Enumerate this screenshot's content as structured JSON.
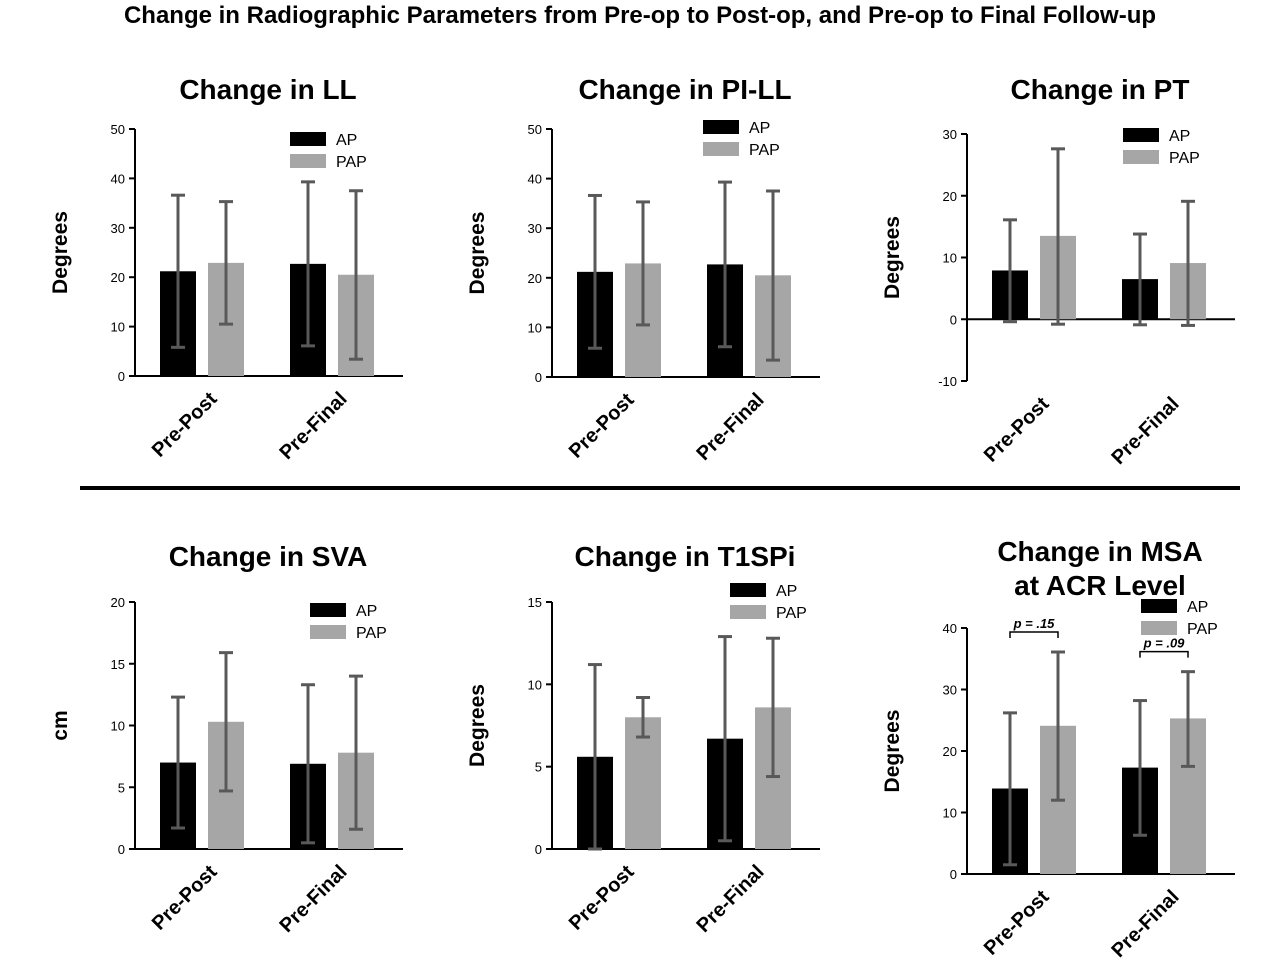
{
  "title": "Change in Radiographic Parameters from Pre-op to Post-op, and Pre-op to Final Follow-up",
  "colors": {
    "AP": "#000000",
    "PAP": "#a6a6a6",
    "errorbar": "#595959",
    "axis": "#000000"
  },
  "chart_data": [
    {
      "type": "bar",
      "title": "Change in LL",
      "ylabel": "Degrees",
      "ylim": [
        0,
        50
      ],
      "yticks": [
        0,
        10,
        20,
        30,
        40,
        50
      ],
      "categories": [
        "Pre-Post",
        "Pre-Final"
      ],
      "series": [
        {
          "name": "AP",
          "values": [
            21.2,
            22.7
          ],
          "err_low": [
            5.8,
            6.1
          ],
          "err_high": [
            36.6,
            39.3
          ]
        },
        {
          "name": "PAP",
          "values": [
            22.9,
            20.5
          ],
          "err_low": [
            10.5,
            3.4
          ],
          "err_high": [
            35.3,
            37.5
          ]
        }
      ],
      "legend": "top-right"
    },
    {
      "type": "bar",
      "title": "Change in PI-LL",
      "ylabel": "Degrees",
      "ylim": [
        0,
        50
      ],
      "yticks": [
        0,
        10,
        20,
        30,
        40,
        50
      ],
      "categories": [
        "Pre-Post",
        "Pre-Final"
      ],
      "series": [
        {
          "name": "AP",
          "values": [
            21.2,
            22.7
          ],
          "err_low": [
            5.8,
            6.1
          ],
          "err_high": [
            36.6,
            39.3
          ]
        },
        {
          "name": "PAP",
          "values": [
            22.9,
            20.5
          ],
          "err_low": [
            10.5,
            3.4
          ],
          "err_high": [
            35.3,
            37.5
          ]
        }
      ],
      "legend": "top-right"
    },
    {
      "type": "bar",
      "title": "Change in PT",
      "ylabel": "Degrees",
      "ylim": [
        -10,
        30
      ],
      "yticks": [
        -10,
        0,
        10,
        20,
        30
      ],
      "categories": [
        "Pre-Post",
        "Pre-Final"
      ],
      "series": [
        {
          "name": "AP",
          "values": [
            7.9,
            6.5
          ],
          "err_low": [
            -0.4,
            -0.9
          ],
          "err_high": [
            16.1,
            13.8
          ]
        },
        {
          "name": "PAP",
          "values": [
            13.5,
            9.1
          ],
          "err_low": [
            -0.8,
            -1.0
          ],
          "err_high": [
            27.6,
            19.1
          ]
        }
      ],
      "legend": "top-right"
    },
    {
      "type": "bar",
      "title": "Change in SVA",
      "ylabel": "cm",
      "ylim": [
        0,
        20
      ],
      "yticks": [
        0,
        5,
        10,
        15,
        20
      ],
      "categories": [
        "Pre-Post",
        "Pre-Final"
      ],
      "series": [
        {
          "name": "AP",
          "values": [
            7.0,
            6.9
          ],
          "err_low": [
            1.7,
            0.5
          ],
          "err_high": [
            12.3,
            13.3
          ]
        },
        {
          "name": "PAP",
          "values": [
            10.3,
            7.8
          ],
          "err_low": [
            4.7,
            1.6
          ],
          "err_high": [
            15.9,
            14.0
          ]
        }
      ],
      "legend": "top-right"
    },
    {
      "type": "bar",
      "title": "Change in T1SPi",
      "ylabel": "Degrees",
      "ylim": [
        0,
        15
      ],
      "yticks": [
        0,
        5,
        10,
        15
      ],
      "categories": [
        "Pre-Post",
        "Pre-Final"
      ],
      "series": [
        {
          "name": "AP",
          "values": [
            5.6,
            6.7
          ],
          "err_low": [
            0.0,
            0.5
          ],
          "err_high": [
            11.2,
            12.9
          ]
        },
        {
          "name": "PAP",
          "values": [
            8.0,
            8.6
          ],
          "err_low": [
            6.8,
            4.4
          ],
          "err_high": [
            9.2,
            12.8
          ]
        }
      ],
      "legend": "top-right"
    },
    {
      "type": "bar",
      "title": [
        "Change in MSA",
        "at ACR Level"
      ],
      "ylabel": "Degrees",
      "ylim": [
        0,
        40
      ],
      "yticks": [
        0,
        10,
        20,
        30,
        40
      ],
      "categories": [
        "Pre-Post",
        "Pre-Final"
      ],
      "series": [
        {
          "name": "AP",
          "values": [
            13.9,
            17.3
          ],
          "err_low": [
            1.5,
            6.3
          ],
          "err_high": [
            26.2,
            28.2
          ]
        },
        {
          "name": "PAP",
          "values": [
            24.1,
            25.3
          ],
          "err_low": [
            12.0,
            17.5
          ],
          "err_high": [
            36.1,
            32.9
          ]
        }
      ],
      "annotations": [
        "p = .15",
        "p = .09"
      ],
      "legend": "top-right"
    }
  ]
}
